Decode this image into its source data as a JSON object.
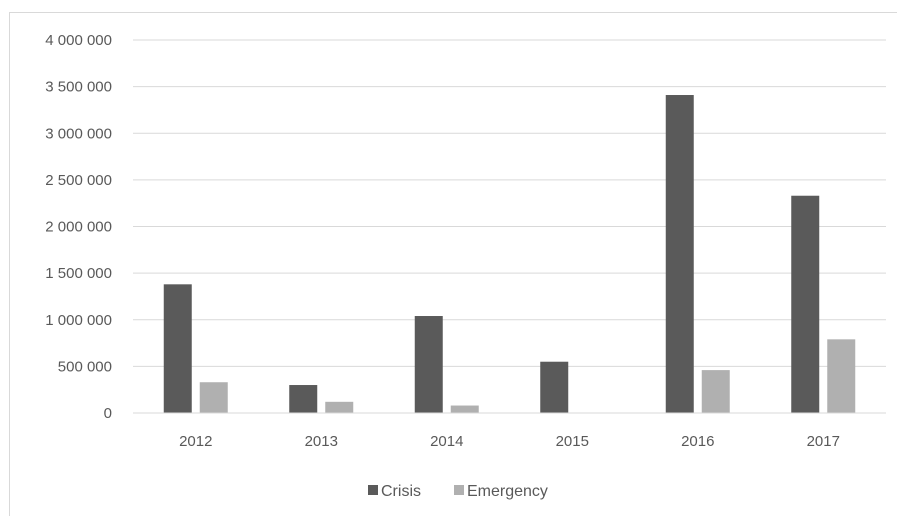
{
  "chart_data": {
    "type": "bar",
    "categories": [
      "2012",
      "2013",
      "2014",
      "2015",
      "2016",
      "2017"
    ],
    "series": [
      {
        "name": "Crisis",
        "color": "#5a5a5a",
        "values": [
          1380000,
          300000,
          1040000,
          550000,
          3410000,
          2330000
        ]
      },
      {
        "name": "Emergency",
        "color": "#b0b0b0",
        "values": [
          330000,
          120000,
          80000,
          0,
          460000,
          790000
        ]
      }
    ],
    "ylim": [
      0,
      4000000
    ],
    "yticks": [
      0,
      500000,
      1000000,
      1500000,
      2000000,
      2500000,
      3000000,
      3500000,
      4000000
    ],
    "ytick_labels": [
      "0",
      "500 000",
      "1 000 000",
      "1 500 000",
      "2 000 000",
      "2 500 000",
      "3 000 000",
      "3 500 000",
      "4 000 000"
    ],
    "grid": true,
    "legend_position": "bottom",
    "title": "",
    "xlabel": "",
    "ylabel": ""
  }
}
